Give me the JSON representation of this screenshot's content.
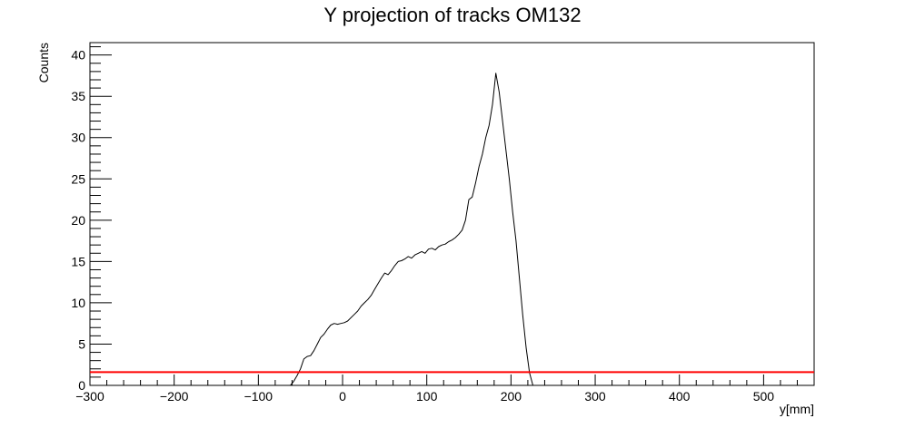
{
  "chart_data": {
    "type": "line",
    "title": "Y projection of tracks OM132",
    "xlabel": "y[mm]",
    "ylabel": "Counts",
    "xlim": [
      -300,
      560
    ],
    "ylim": [
      0,
      41.5
    ],
    "x_ticks": [
      -300,
      -200,
      -100,
      0,
      100,
      200,
      300,
      400,
      500
    ],
    "x_tick_labels": [
      "−300",
      "−200",
      "−100",
      "0",
      "100",
      "200",
      "300",
      "400",
      "500"
    ],
    "y_ticks": [
      0,
      5,
      10,
      15,
      20,
      25,
      30,
      35,
      40
    ],
    "y_tick_labels": [
      "0",
      "5",
      "10",
      "15",
      "20",
      "25",
      "30",
      "35",
      "40"
    ],
    "grid": false,
    "legend": "none",
    "series": [
      {
        "color": "#000000",
        "x": [
          -62,
          -58,
          -54,
          -50,
          -46,
          -42,
          -38,
          -34,
          -30,
          -26,
          -22,
          -18,
          -14,
          -10,
          -6,
          -2,
          2,
          6,
          10,
          14,
          18,
          22,
          26,
          30,
          34,
          38,
          42,
          46,
          50,
          54,
          58,
          62,
          66,
          70,
          74,
          78,
          82,
          86,
          90,
          94,
          98,
          102,
          106,
          110,
          114,
          118,
          122,
          126,
          130,
          134,
          138,
          142,
          146,
          150,
          154,
          158,
          162,
          166,
          170,
          174,
          178,
          182,
          186,
          190,
          194,
          198,
          202,
          206,
          210,
          214,
          218,
          222,
          226,
          230,
          234,
          238,
          242,
          246,
          250,
          254,
          258,
          262,
          266,
          270,
          274,
          278,
          282,
          286,
          290,
          294,
          296,
          298
        ],
        "y": [
          0.0,
          0.5,
          1.2,
          2.0,
          3.2,
          3.5,
          3.6,
          4.2,
          5.0,
          5.8,
          6.2,
          6.8,
          7.3,
          7.5,
          7.4,
          7.5,
          7.6,
          7.8,
          8.2,
          8.6,
          9.0,
          9.6,
          10.0,
          10.4,
          10.9,
          11.6,
          12.3,
          13.0,
          13.6,
          13.4,
          13.9,
          14.5,
          15.0,
          15.1,
          15.3,
          15.6,
          15.4,
          15.8,
          16.0,
          16.2,
          16.0,
          16.5,
          16.6,
          16.4,
          16.8,
          17.0,
          17.1,
          17.4,
          17.6,
          17.9,
          18.3,
          18.8,
          20.0,
          22.5,
          22.8,
          24.5,
          26.5,
          28.0,
          30.0,
          31.5,
          34.0,
          37.8,
          35.5,
          32.0,
          28.5,
          25.0,
          21.0,
          17.5,
          13.0,
          8.5,
          4.5,
          1.5,
          0.0,
          0.0,
          0.0,
          0.0,
          0.0,
          0.0,
          0.0,
          0.0,
          0.0,
          0.0,
          0.0,
          0.0,
          0.0,
          0.0,
          0.0,
          0.0,
          0.0,
          0.0,
          0.0,
          0.0
        ]
      },
      {
        "color": "#ff0000",
        "x": [
          -300,
          560
        ],
        "y": [
          1.6,
          1.6
        ]
      }
    ]
  }
}
